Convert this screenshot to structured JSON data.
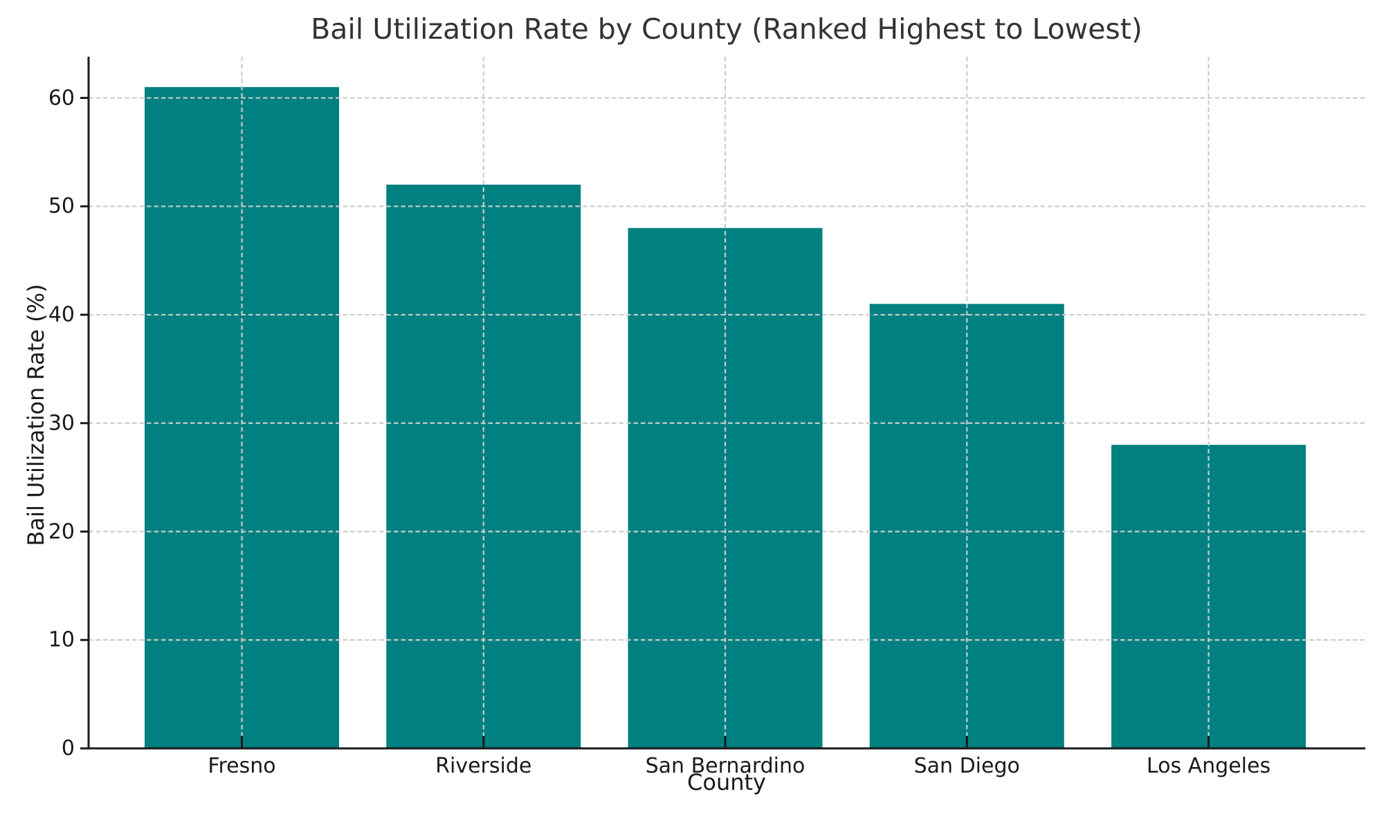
{
  "chart_data": {
    "type": "bar",
    "title": "Bail Utilization Rate by County (Ranked Highest to Lowest)",
    "xlabel": "County",
    "ylabel": "Bail Utilization Rate (%)",
    "categories": [
      "Fresno",
      "Riverside",
      "San Bernardino",
      "San Diego",
      "Los Angeles"
    ],
    "values": [
      61,
      52,
      48,
      41,
      28
    ],
    "yticks": [
      0,
      10,
      20,
      30,
      40,
      50,
      60
    ],
    "ylim": [
      0,
      63.8
    ],
    "bar_color": "#008080",
    "grid_color": "#cccccc",
    "axis_color": "#1a1a1a",
    "grid": "dashed, horizontal and vertical, drawn over bars",
    "legend": "none"
  }
}
